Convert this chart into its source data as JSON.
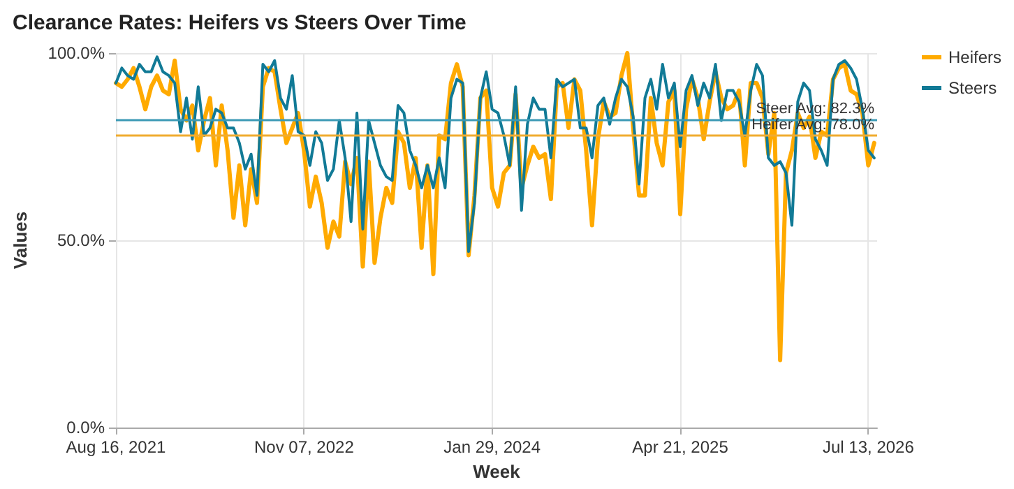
{
  "chart_data": {
    "type": "line",
    "title": "Clearance Rates: Heifers vs Steers Over Time",
    "xlabel": "Week",
    "ylabel": "Values",
    "x": [
      "2021-08-16",
      "2021-08-30",
      "2021-09-13",
      "2021-09-27",
      "2021-10-11",
      "2021-10-25",
      "2021-11-08",
      "2021-11-22",
      "2021-12-06",
      "2021-12-20",
      "2022-01-03",
      "2022-01-17",
      "2022-01-31",
      "2022-02-14",
      "2022-02-28",
      "2022-03-14",
      "2022-03-28",
      "2022-04-11",
      "2022-04-25",
      "2022-05-09",
      "2022-05-23",
      "2022-06-06",
      "2022-06-20",
      "2022-07-04",
      "2022-07-18",
      "2022-08-01",
      "2022-08-15",
      "2022-08-29",
      "2022-09-12",
      "2022-09-26",
      "2022-10-10",
      "2022-10-24",
      "2022-11-07",
      "2022-11-21",
      "2022-12-05",
      "2022-12-19",
      "2023-01-02",
      "2023-01-16",
      "2023-01-30",
      "2023-02-13",
      "2023-02-27",
      "2023-03-13",
      "2023-03-27",
      "2023-04-10",
      "2023-04-24",
      "2023-05-08",
      "2023-05-22",
      "2023-06-05",
      "2023-06-19",
      "2023-07-03",
      "2023-07-17",
      "2023-07-31",
      "2023-08-14",
      "2023-08-28",
      "2023-09-11",
      "2023-09-25",
      "2023-10-09",
      "2023-10-23",
      "2023-11-06",
      "2023-11-20",
      "2023-12-04",
      "2023-12-18",
      "2024-01-01",
      "2024-01-15",
      "2024-01-29",
      "2024-02-12",
      "2024-02-26",
      "2024-03-11",
      "2024-03-25",
      "2024-04-08",
      "2024-04-22",
      "2024-05-06",
      "2024-05-20",
      "2024-06-03",
      "2024-06-17",
      "2024-07-01",
      "2024-07-15",
      "2024-07-29",
      "2024-08-12",
      "2024-08-26",
      "2024-09-09",
      "2024-09-23",
      "2024-10-07",
      "2024-10-21",
      "2024-11-04",
      "2024-11-18",
      "2024-12-02",
      "2024-12-16",
      "2024-12-30",
      "2025-01-13",
      "2025-01-27",
      "2025-02-10",
      "2025-02-24",
      "2025-03-10",
      "2025-03-24",
      "2025-04-07",
      "2025-04-21",
      "2025-05-05",
      "2025-05-19",
      "2025-06-02",
      "2025-06-16",
      "2025-06-30",
      "2025-07-14",
      "2025-07-28",
      "2025-08-11",
      "2025-08-25",
      "2025-09-08",
      "2025-09-22",
      "2025-10-06",
      "2025-10-20",
      "2025-11-03",
      "2025-11-17",
      "2025-12-01",
      "2025-12-15",
      "2025-12-29",
      "2026-01-12",
      "2026-01-26",
      "2026-02-09",
      "2026-02-23",
      "2026-03-09",
      "2026-03-23",
      "2026-04-06",
      "2026-04-20",
      "2026-05-04",
      "2026-05-18",
      "2026-06-01",
      "2026-06-15",
      "2026-06-29",
      "2026-07-13",
      "2026-07-27"
    ],
    "series": [
      {
        "name": "Heifers",
        "color": "#ffaa00",
        "values": [
          92,
          91,
          93,
          96,
          91,
          85,
          91,
          94,
          90,
          89,
          98,
          85,
          82,
          86,
          74,
          82,
          88,
          70,
          86,
          74,
          56,
          70,
          54,
          69,
          60,
          91,
          96,
          95,
          85,
          76,
          80,
          84,
          74,
          59,
          67,
          60,
          48,
          55,
          51,
          71,
          65,
          72,
          43,
          71,
          44,
          56,
          64,
          60,
          79,
          76,
          64,
          72,
          48,
          70,
          41,
          78,
          77,
          92,
          97,
          91,
          46,
          62,
          88,
          90,
          64,
          59,
          68,
          70,
          89,
          64,
          70,
          75,
          72,
          73,
          61,
          91,
          92,
          80,
          93,
          90,
          74,
          54,
          77,
          87,
          83,
          84,
          94,
          100,
          80,
          62,
          62,
          88,
          76,
          70,
          87,
          90,
          57,
          85,
          93,
          88,
          77,
          87,
          95,
          88,
          85,
          86,
          90,
          70,
          92,
          92,
          88,
          73,
          84,
          18,
          68,
          74,
          84,
          80,
          83,
          72,
          79,
          78,
          93,
          96,
          97,
          90,
          89,
          84,
          70,
          76
        ]
      },
      {
        "name": "Steers",
        "color": "#117a96",
        "values": [
          92,
          96,
          94,
          93,
          97,
          95,
          95,
          99,
          95,
          94,
          92,
          79,
          88,
          77,
          91,
          78,
          80,
          85,
          84,
          80,
          80,
          76,
          69,
          73,
          62,
          97,
          95,
          98,
          88,
          85,
          94,
          79,
          78,
          70,
          79,
          76,
          66,
          69,
          82,
          72,
          55,
          84,
          53,
          82,
          76,
          70,
          67,
          66,
          86,
          84,
          74,
          70,
          64,
          70,
          64,
          72,
          64,
          88,
          93,
          92,
          47,
          60,
          88,
          95,
          85,
          84,
          78,
          70,
          91,
          58,
          81,
          88,
          85,
          85,
          72,
          93,
          91,
          92,
          93,
          80,
          80,
          72,
          86,
          88,
          81,
          88,
          93,
          91,
          83,
          65,
          88,
          93,
          85,
          97,
          88,
          92,
          75,
          90,
          94,
          86,
          92,
          88,
          97,
          82,
          90,
          90,
          87,
          78,
          90,
          97,
          94,
          72,
          70,
          71,
          68,
          54,
          87,
          92,
          90,
          77,
          74,
          70,
          93,
          97,
          98,
          96,
          93,
          85,
          74,
          72
        ]
      }
    ],
    "xlim": [
      "2021-08-16",
      "2026-08-03"
    ],
    "xticks": [
      {
        "value": "2021-08-16",
        "label": "Aug 16, 2021"
      },
      {
        "value": "2022-11-07",
        "label": "Nov 07, 2022"
      },
      {
        "value": "2024-01-29",
        "label": "Jan 29, 2024"
      },
      {
        "value": "2025-04-21",
        "label": "Apr 21, 2025"
      },
      {
        "value": "2026-07-13",
        "label": "Jul 13, 2026"
      }
    ],
    "ylim": [
      0,
      100
    ],
    "yticks": [
      {
        "value": 0,
        "label": "0.0%"
      },
      {
        "value": 50,
        "label": "50.0%"
      },
      {
        "value": 100,
        "label": "100.0%"
      }
    ],
    "ref_lines": [
      {
        "axis": "y",
        "value": 82.3,
        "label": "Steer Avg: 82.3%",
        "color": "#3c9ab5"
      },
      {
        "axis": "y",
        "value": 78.0,
        "label": "Heifer Avg: 78.0%",
        "color": "#f0ac30"
      }
    ],
    "grid": true,
    "legend": "top right"
  }
}
